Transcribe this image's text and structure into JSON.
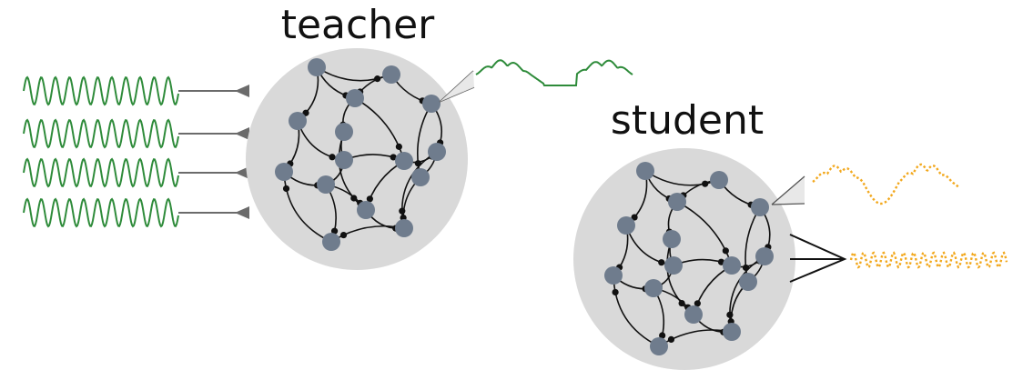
{
  "labels": {
    "teacher": "teacher",
    "student": "student"
  },
  "colors": {
    "background": "#ffffff",
    "network_disk": "#d9d9d9",
    "neuron": "#6f7c8d",
    "synapse": "#111111",
    "teacher_signal": "#2e8b3a",
    "student_signal": "#f2a81d",
    "input_connector": "#6b6b6b"
  },
  "networks": [
    {
      "role": "teacher",
      "input_signals": 4,
      "output_signals": 1
    },
    {
      "role": "student",
      "input_signals": 0,
      "output_signals": 2
    }
  ]
}
